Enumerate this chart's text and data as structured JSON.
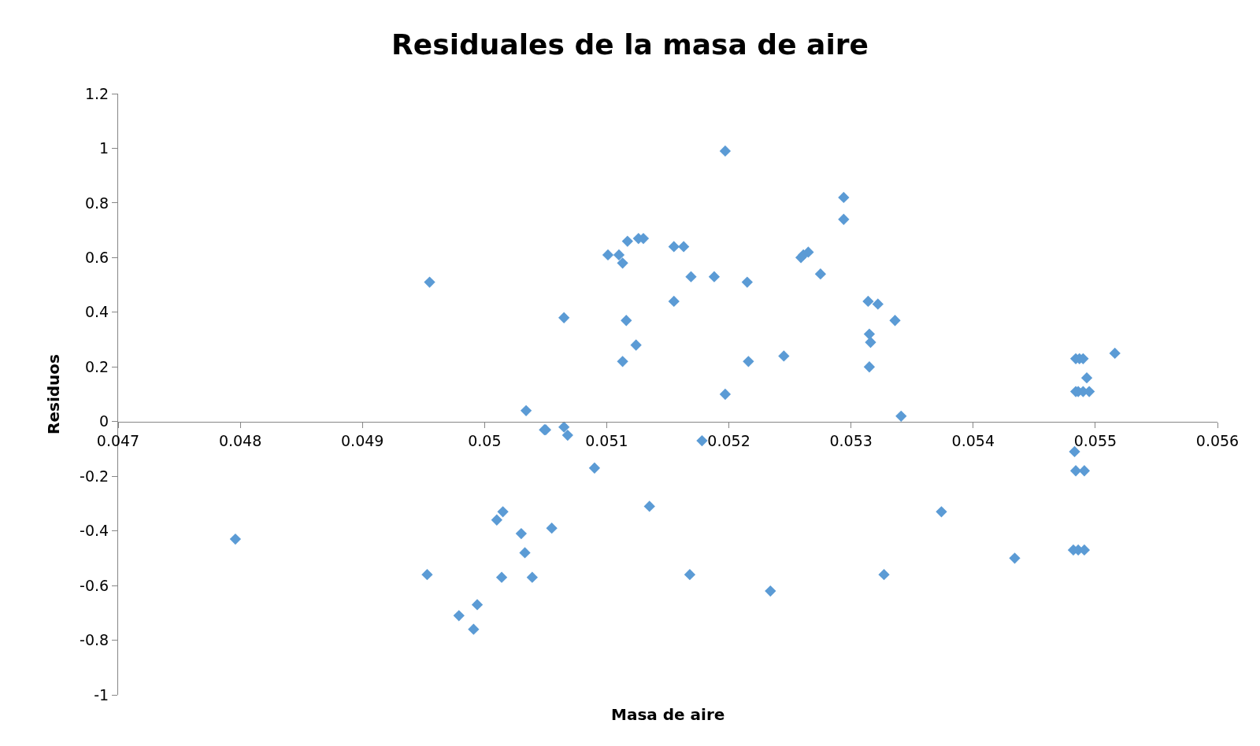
{
  "chart_data": {
    "type": "scatter",
    "title": "Residuales de la masa de aire",
    "xlabel": "Masa de aire",
    "ylabel": "Residuos",
    "marker": "diamond",
    "xlim": [
      0.047,
      0.056
    ],
    "xticks": [
      0.047,
      0.048,
      0.049,
      0.05,
      0.051,
      0.052,
      0.053,
      0.054,
      0.055,
      0.056
    ],
    "ylim": [
      -1,
      1.2
    ],
    "yticks": [
      -1,
      -0.8,
      -0.6,
      -0.4,
      -0.2,
      0,
      0.2,
      0.4,
      0.6,
      0.8,
      1,
      1.2
    ],
    "series": [
      {
        "color": "#5b9bd5",
        "x": [
          0.04796,
          0.04955,
          0.04953,
          0.04979,
          0.04991,
          0.04994,
          0.0501,
          0.05015,
          0.05014,
          0.0503,
          0.05033,
          0.05034,
          0.05039,
          0.05049,
          0.0505,
          0.05055,
          0.05065,
          0.05065,
          0.05068,
          0.0509,
          0.05101,
          0.0511,
          0.05113,
          0.05113,
          0.05117,
          0.05116,
          0.05124,
          0.05126,
          0.0513,
          0.05135,
          0.05155,
          0.05155,
          0.05163,
          0.05168,
          0.05169,
          0.05178,
          0.05188,
          0.05197,
          0.05197,
          0.05215,
          0.05216,
          0.05234,
          0.05245,
          0.05259,
          0.05261,
          0.05265,
          0.05275,
          0.05294,
          0.05294,
          0.05314,
          0.05315,
          0.05315,
          0.05316,
          0.05322,
          0.05327,
          0.05336,
          0.05341,
          0.05374,
          0.05434,
          0.05483,
          0.05484,
          0.05487,
          0.0549,
          0.05484,
          0.05486,
          0.0549,
          0.05495,
          0.05493,
          0.05484,
          0.05491,
          0.05482,
          0.05486,
          0.05491,
          0.05516
        ],
        "values": [
          -0.43,
          0.51,
          -0.56,
          -0.71,
          -0.76,
          -0.67,
          -0.36,
          -0.33,
          -0.57,
          -0.41,
          -0.48,
          0.04,
          -0.57,
          -0.03,
          -0.03,
          -0.39,
          0.38,
          -0.02,
          -0.05,
          -0.17,
          0.61,
          0.61,
          0.58,
          0.22,
          0.66,
          0.37,
          0.28,
          0.67,
          0.67,
          -0.31,
          0.44,
          0.64,
          0.64,
          -0.56,
          0.53,
          -0.07,
          0.53,
          0.99,
          0.1,
          0.51,
          0.22,
          -0.62,
          0.24,
          0.6,
          0.61,
          0.62,
          0.54,
          0.82,
          0.74,
          0.44,
          0.2,
          0.32,
          0.29,
          0.43,
          -0.56,
          0.37,
          0.02,
          -0.33,
          -0.5,
          -0.11,
          0.23,
          0.23,
          0.23,
          0.11,
          0.11,
          0.11,
          0.11,
          0.16,
          -0.18,
          -0.18,
          -0.47,
          -0.47,
          -0.47,
          0.25
        ]
      }
    ]
  }
}
